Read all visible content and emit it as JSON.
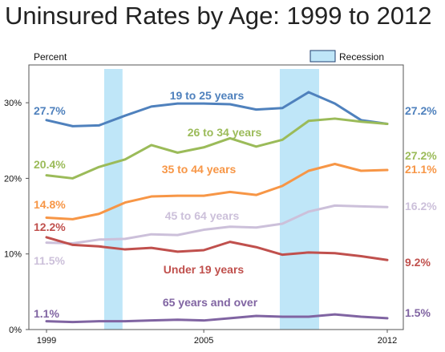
{
  "title": "Uninsured Rates by Age: 1999 to 2012",
  "chart_data": {
    "type": "line",
    "title": "Uninsured Rates by Age: 1999 to 2012",
    "ylabel": "Percent",
    "xlabel": "",
    "x": [
      1999,
      2000,
      2001,
      2002,
      2003,
      2004,
      2005,
      2006,
      2007,
      2008,
      2009,
      2010,
      2011,
      2012
    ],
    "x_ticks": [
      "1999",
      "2005",
      "2012"
    ],
    "y_ticks": [
      "0%",
      "10%",
      "20%",
      "30%"
    ],
    "ylim": [
      0,
      35
    ],
    "grid": false,
    "legend": {
      "label": "Recession",
      "placement": "top-right",
      "color": "#bfe6f8"
    },
    "recessions": [
      [
        2001.2,
        2001.9
      ],
      [
        2007.9,
        2009.4
      ]
    ],
    "series": [
      {
        "name": "19 to 25 years",
        "color": "#4f81bd",
        "start_label": "27.7%",
        "end_label": "27.2%",
        "values": [
          27.7,
          26.9,
          27.0,
          28.3,
          29.5,
          29.9,
          29.9,
          29.8,
          29.1,
          29.3,
          31.4,
          29.9,
          27.7,
          27.2
        ]
      },
      {
        "name": "26 to 34 years",
        "color": "#9bbb59",
        "start_label": "20.4%",
        "end_label": "27.2%",
        "values": [
          20.4,
          20.0,
          21.5,
          22.5,
          24.4,
          23.4,
          24.1,
          25.3,
          24.2,
          25.1,
          27.6,
          27.9,
          27.5,
          27.2
        ]
      },
      {
        "name": "35 to 44 years",
        "color": "#f79646",
        "start_label": "14.8%",
        "end_label": "21.1%",
        "values": [
          14.8,
          14.6,
          15.3,
          16.8,
          17.6,
          17.7,
          17.7,
          18.2,
          17.8,
          19.0,
          21.0,
          21.9,
          21.0,
          21.1
        ]
      },
      {
        "name": "45 to 64 years",
        "color": "#ccc0da",
        "start_label": "11.5%",
        "end_label": "16.2%",
        "values": [
          11.5,
          11.4,
          11.9,
          12.0,
          12.6,
          12.5,
          13.2,
          13.6,
          13.5,
          14.0,
          15.6,
          16.4,
          16.3,
          16.2
        ]
      },
      {
        "name": "Under 19 years",
        "color": "#c0504d",
        "start_label": "12.2%",
        "end_label": "9.2%",
        "values": [
          12.2,
          11.2,
          11.0,
          10.6,
          10.8,
          10.3,
          10.5,
          11.6,
          10.9,
          9.9,
          10.2,
          10.1,
          9.7,
          9.2
        ]
      },
      {
        "name": "65 years and over",
        "color": "#8064a2",
        "start_label": "1.1%",
        "end_label": "1.5%",
        "values": [
          1.1,
          1.0,
          1.1,
          1.1,
          1.2,
          1.3,
          1.2,
          1.5,
          1.8,
          1.7,
          1.7,
          2.0,
          1.7,
          1.5
        ]
      }
    ]
  }
}
